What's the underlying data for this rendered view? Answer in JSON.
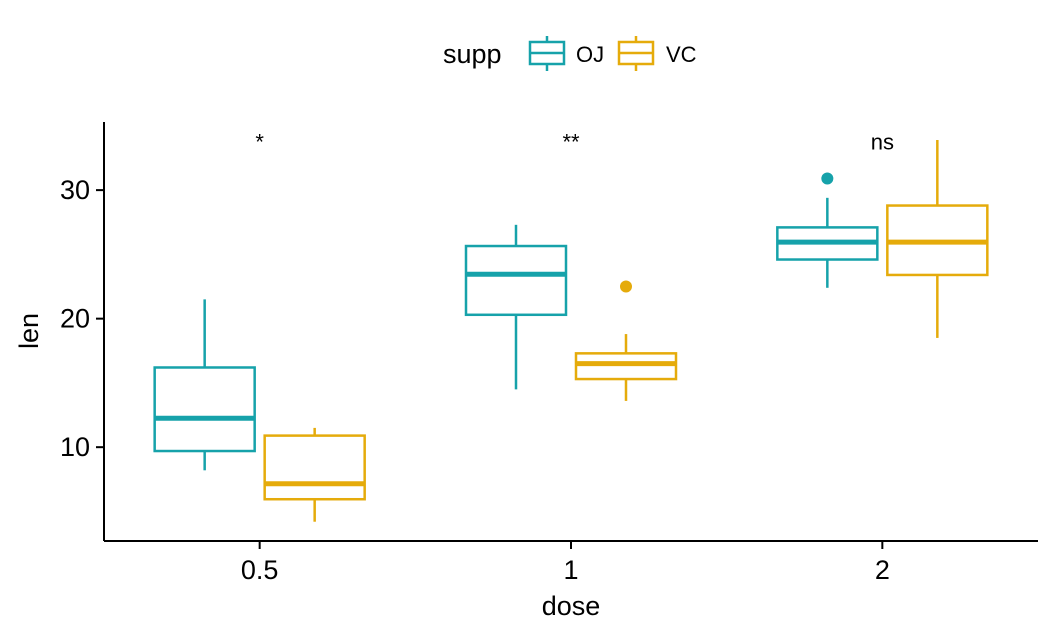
{
  "chart_data": {
    "type": "boxplot",
    "xlabel": "dose",
    "ylabel": "len",
    "categories": [
      "0.5",
      "1",
      "2"
    ],
    "y_ticks": [
      10,
      20,
      30
    ],
    "ylim": [
      2.7,
      35.3
    ],
    "grid": false,
    "legend": {
      "title": "supp",
      "placement": "top",
      "entries": [
        "OJ",
        "VC"
      ]
    },
    "series": [
      {
        "name": "OJ",
        "color": "#16a2aa",
        "boxes": [
          {
            "category": "0.5",
            "whisker_low": 8.2,
            "q1": 9.7,
            "median": 12.25,
            "q3": 16.2,
            "whisker_high": 21.5,
            "outliers": []
          },
          {
            "category": "1",
            "whisker_low": 14.5,
            "q1": 20.3,
            "median": 23.45,
            "q3": 25.65,
            "whisker_high": 27.3,
            "outliers": []
          },
          {
            "category": "2",
            "whisker_low": 22.4,
            "q1": 24.6,
            "median": 25.95,
            "q3": 27.1,
            "whisker_high": 29.4,
            "outliers": [
              30.9
            ]
          }
        ]
      },
      {
        "name": "VC",
        "color": "#e5ab0b",
        "boxes": [
          {
            "category": "0.5",
            "whisker_low": 4.2,
            "q1": 5.95,
            "median": 7.15,
            "q3": 10.9,
            "whisker_high": 11.5,
            "outliers": []
          },
          {
            "category": "1",
            "whisker_low": 13.6,
            "q1": 15.3,
            "median": 16.5,
            "q3": 17.3,
            "whisker_high": 18.8,
            "outliers": [
              22.5
            ]
          },
          {
            "category": "2",
            "whisker_low": 18.5,
            "q1": 23.4,
            "median": 25.95,
            "q3": 28.8,
            "whisker_high": 33.9,
            "outliers": []
          }
        ]
      }
    ],
    "annotations": [
      {
        "category": "0.5",
        "text": "*",
        "y": 33.8
      },
      {
        "category": "1",
        "text": "**",
        "y": 33.8
      },
      {
        "category": "2",
        "text": "ns",
        "y": 33.8
      }
    ]
  }
}
